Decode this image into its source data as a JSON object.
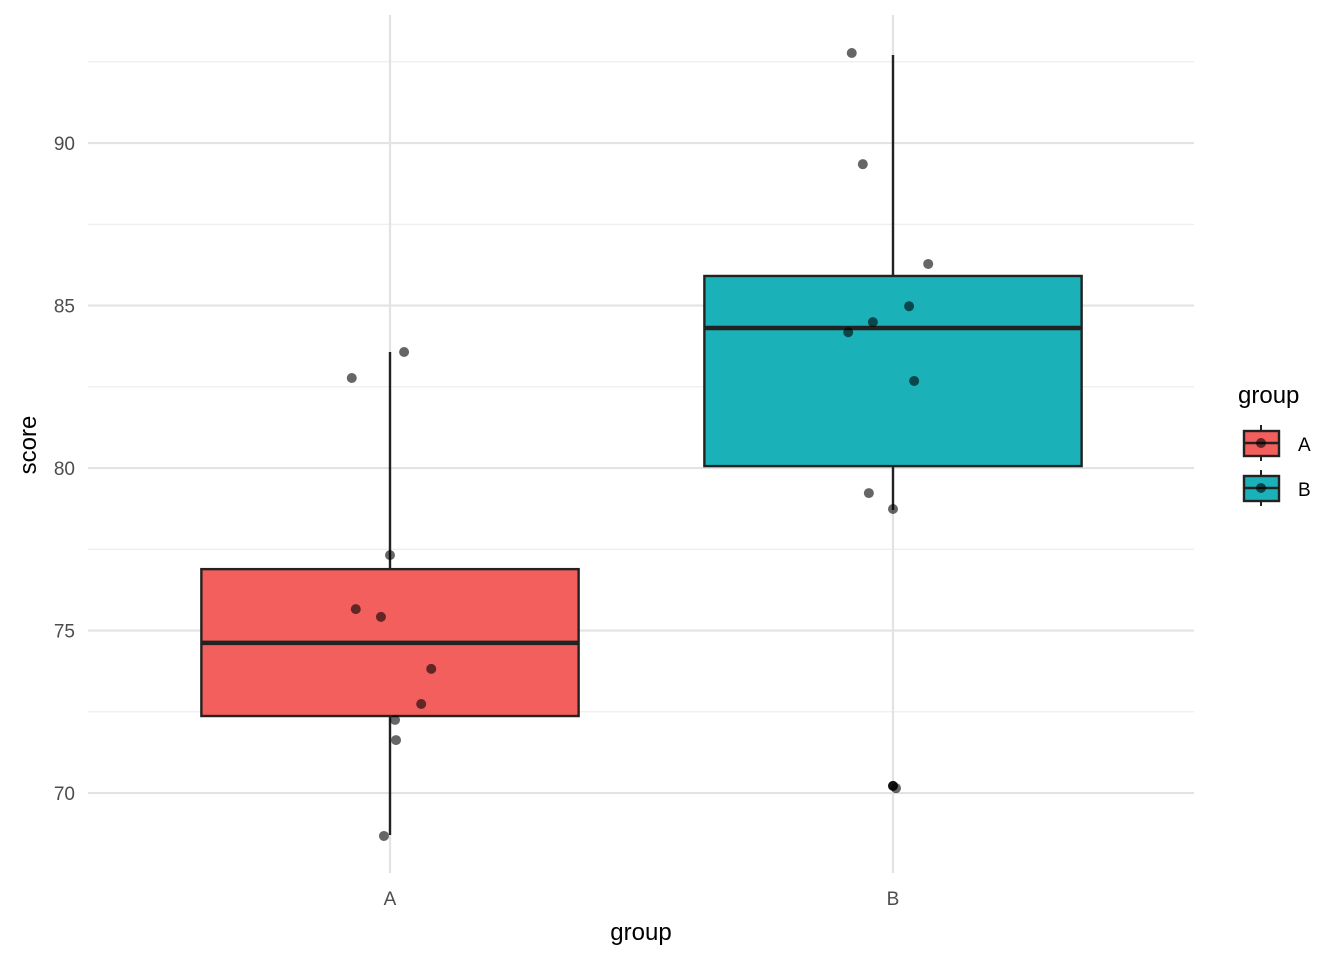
{
  "chart_data": {
    "type": "boxplot",
    "title": "",
    "xlabel": "group",
    "ylabel": "score",
    "ylim": [
      67.54,
      93.94
    ],
    "yticks": [
      70,
      75,
      80,
      85,
      90
    ],
    "ytick_labels": [
      "70",
      "75",
      "80",
      "85",
      "90"
    ],
    "categories": [
      "A",
      "B"
    ],
    "grid": true,
    "legend": {
      "title": "group",
      "position": "right",
      "entries": [
        "A",
        "B"
      ]
    },
    "colors": {
      "A": "#F25F5C",
      "B": "#1AB2B8"
    },
    "boxes": [
      {
        "group": "A",
        "lower_whisker": 68.71,
        "q1": 72.37,
        "median": 74.62,
        "q3": 76.89,
        "upper_whisker": 83.57,
        "outliers": []
      },
      {
        "group": "B",
        "lower_whisker": 78.71,
        "q1": 80.06,
        "median": 84.31,
        "q3": 85.91,
        "upper_whisker": 92.71,
        "outliers": [
          70.22
        ]
      }
    ],
    "points": [
      {
        "group": "A",
        "jitter": -0.076,
        "y": 82.77
      },
      {
        "group": "A",
        "jitter": 0.028,
        "y": 83.57
      },
      {
        "group": "A",
        "jitter": 0.0,
        "y": 77.32
      },
      {
        "group": "A",
        "jitter": -0.068,
        "y": 75.66
      },
      {
        "group": "A",
        "jitter": -0.018,
        "y": 75.42
      },
      {
        "group": "A",
        "jitter": 0.082,
        "y": 73.82
      },
      {
        "group": "A",
        "jitter": 0.062,
        "y": 72.74
      },
      {
        "group": "A",
        "jitter": 0.01,
        "y": 72.25
      },
      {
        "group": "A",
        "jitter": 0.012,
        "y": 71.63
      },
      {
        "group": "A",
        "jitter": -0.012,
        "y": 68.68
      },
      {
        "group": "B",
        "jitter": -0.082,
        "y": 92.77
      },
      {
        "group": "B",
        "jitter": -0.06,
        "y": 89.35
      },
      {
        "group": "B",
        "jitter": 0.07,
        "y": 86.28
      },
      {
        "group": "B",
        "jitter": 0.032,
        "y": 84.98
      },
      {
        "group": "B",
        "jitter": -0.04,
        "y": 84.49
      },
      {
        "group": "B",
        "jitter": -0.089,
        "y": 84.18
      },
      {
        "group": "B",
        "jitter": 0.042,
        "y": 82.68
      },
      {
        "group": "B",
        "jitter": -0.048,
        "y": 79.23
      },
      {
        "group": "B",
        "jitter": 0.0,
        "y": 78.74
      },
      {
        "group": "B",
        "jitter": 0.006,
        "y": 70.15
      }
    ]
  }
}
